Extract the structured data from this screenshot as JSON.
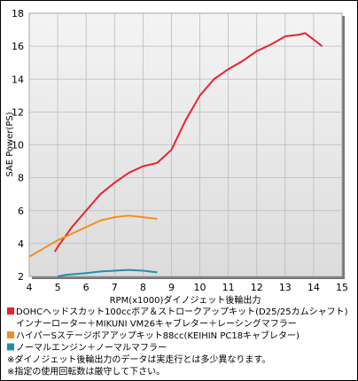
{
  "chart_data": {
    "type": "line",
    "xlabel": "RPM(x1000)ダイノジェット後輪出力",
    "ylabel": "SAE Power(PS)",
    "xlim": [
      4,
      15
    ],
    "xticks": [
      4,
      5,
      6,
      7,
      8,
      9,
      10,
      11,
      12,
      13,
      14,
      15
    ],
    "ylim": [
      2,
      18
    ],
    "yticks": [
      2,
      4,
      6,
      8,
      10,
      12,
      14,
      16,
      18
    ],
    "grid": true,
    "series": [
      {
        "name": "DOHCヘッドスカット100ccボア＆ストロークアップキット(D25/25カムシャフト)",
        "name_detail": [
          "インナーローター＋MIKUNI VM26キャブレター＋",
          "レーシングマフラー"
        ],
        "color": "#e8242c",
        "x": [
          4.9,
          5.0,
          5.5,
          6.0,
          6.5,
          7.0,
          7.5,
          8.0,
          8.5,
          9.0,
          9.5,
          10.0,
          10.5,
          11.0,
          11.5,
          12.0,
          12.5,
          13.0,
          13.5,
          13.7,
          14.0,
          14.3
        ],
        "values": [
          3.5,
          3.8,
          5.0,
          6.0,
          7.0,
          7.7,
          8.3,
          8.7,
          8.9,
          9.7,
          11.5,
          13.0,
          14.0,
          14.6,
          15.1,
          15.7,
          16.1,
          16.6,
          16.7,
          16.8,
          16.4,
          16.0
        ]
      },
      {
        "name": "ハイパーSステージボアアップキット88cc(KEIHIN PC18キャブレター)",
        "color": "#f0901e",
        "x": [
          4.0,
          4.5,
          5.0,
          5.5,
          6.0,
          6.5,
          7.0,
          7.5,
          8.0,
          8.5
        ],
        "values": [
          3.2,
          3.7,
          4.2,
          4.6,
          5.0,
          5.4,
          5.6,
          5.7,
          5.6,
          5.5
        ]
      },
      {
        "name": "ノーマルエンジン＋ノーマルマフラー",
        "color": "#2090a8",
        "x": [
          5.0,
          5.3,
          6.0,
          6.5,
          7.0,
          7.5,
          8.0,
          8.5
        ],
        "values": [
          2.0,
          2.1,
          2.2,
          2.3,
          2.35,
          2.4,
          2.35,
          2.25
        ]
      }
    ],
    "notes": [
      "※ダイノジェット後輪出力のデータは実走行とは多少異なります。",
      "※指定の使用回転数は厳守して下さい。"
    ],
    "notes_color": "#e8242c"
  }
}
